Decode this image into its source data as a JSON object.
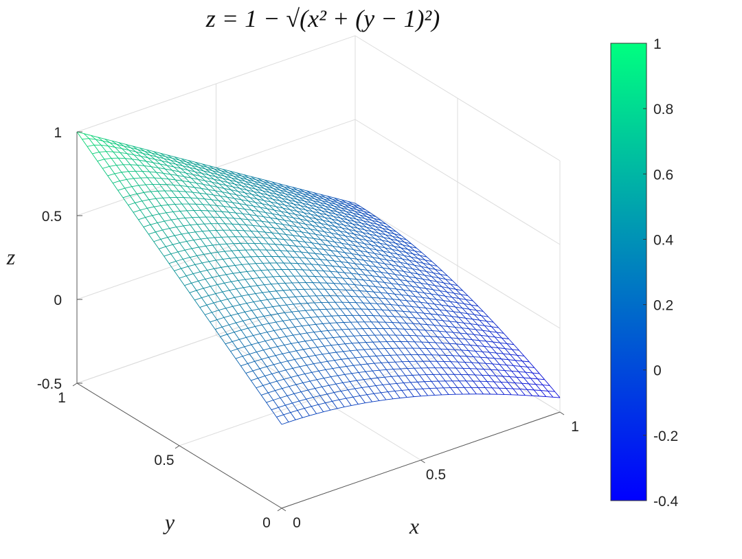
{
  "chart_data": {
    "type": "surface",
    "style": "mesh",
    "title": "z = 1 − √(x² + (y − 1)²)",
    "function": "z = 1 - sqrt(x^2 + (y-1)^2)",
    "xlabel": "x",
    "ylabel": "y",
    "zlabel": "z",
    "xlim": [
      0,
      1
    ],
    "ylim": [
      0,
      1
    ],
    "zlim": [
      -0.5,
      1
    ],
    "xticks": [
      "0",
      "0.5",
      "1"
    ],
    "yticks": [
      "0",
      "0.5",
      "1"
    ],
    "zticks": [
      "-0.5",
      "0",
      "0.5",
      "1"
    ],
    "grid": true,
    "colormap": "winter",
    "colormap_low": "#0000ff",
    "colormap_high": "#00ff80",
    "colorbar": {
      "position": "right",
      "range": [
        -0.4,
        1
      ],
      "ticks": [
        "-0.4",
        "-0.2",
        "0",
        "0.2",
        "0.4",
        "0.6",
        "0.8",
        "1"
      ]
    }
  }
}
